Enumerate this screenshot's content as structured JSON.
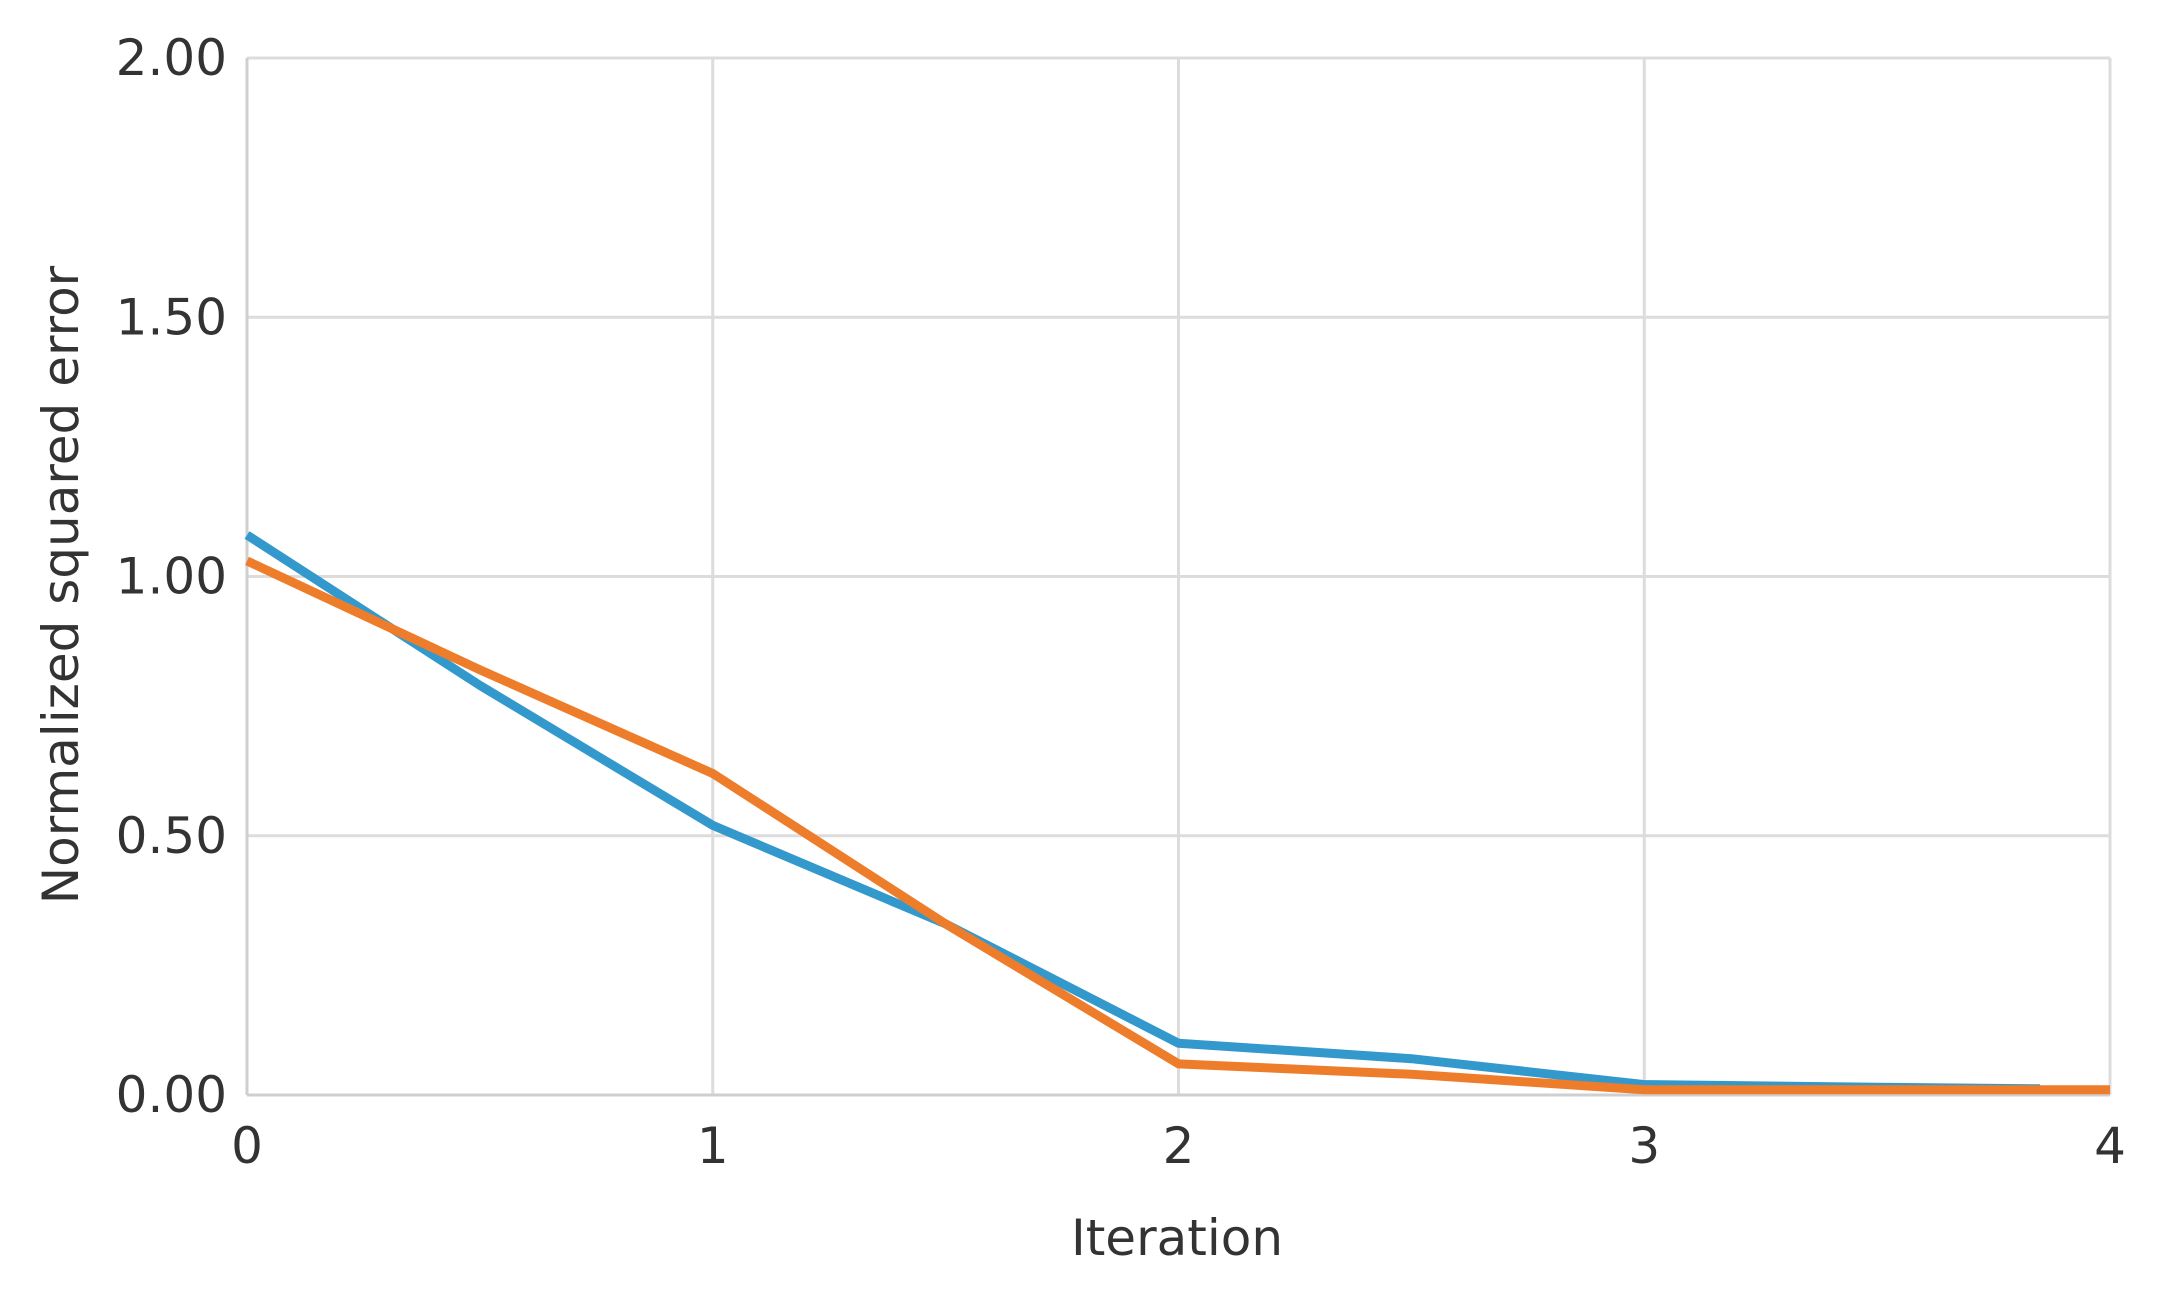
{
  "chart_data": {
    "type": "line",
    "title": "",
    "xlabel": "Iteration",
    "ylabel": "Normalized squared error",
    "xlim": [
      0,
      4
    ],
    "ylim": [
      0,
      2
    ],
    "x_ticks": [
      "0",
      "1",
      "2",
      "3",
      "4"
    ],
    "y_ticks": [
      "0.00",
      "0.50",
      "1.00",
      "1.50",
      "2.00"
    ],
    "grid": true,
    "legend": "none",
    "series": [
      {
        "color": "#3399cc",
        "x": [
          0,
          0.5,
          1,
          1.5,
          2,
          2.5,
          3,
          3.5,
          3.85
        ],
        "y": [
          1.08,
          0.79,
          0.52,
          0.33,
          0.1,
          0.07,
          0.02,
          0.015,
          0.012
        ]
      },
      {
        "color": "#ee7d2b",
        "x": [
          0,
          0.5,
          1,
          1.5,
          2,
          2.5,
          3,
          3.5,
          4
        ],
        "y": [
          1.03,
          0.82,
          0.62,
          0.33,
          0.06,
          0.04,
          0.01,
          0.01,
          0.01
        ]
      }
    ]
  }
}
